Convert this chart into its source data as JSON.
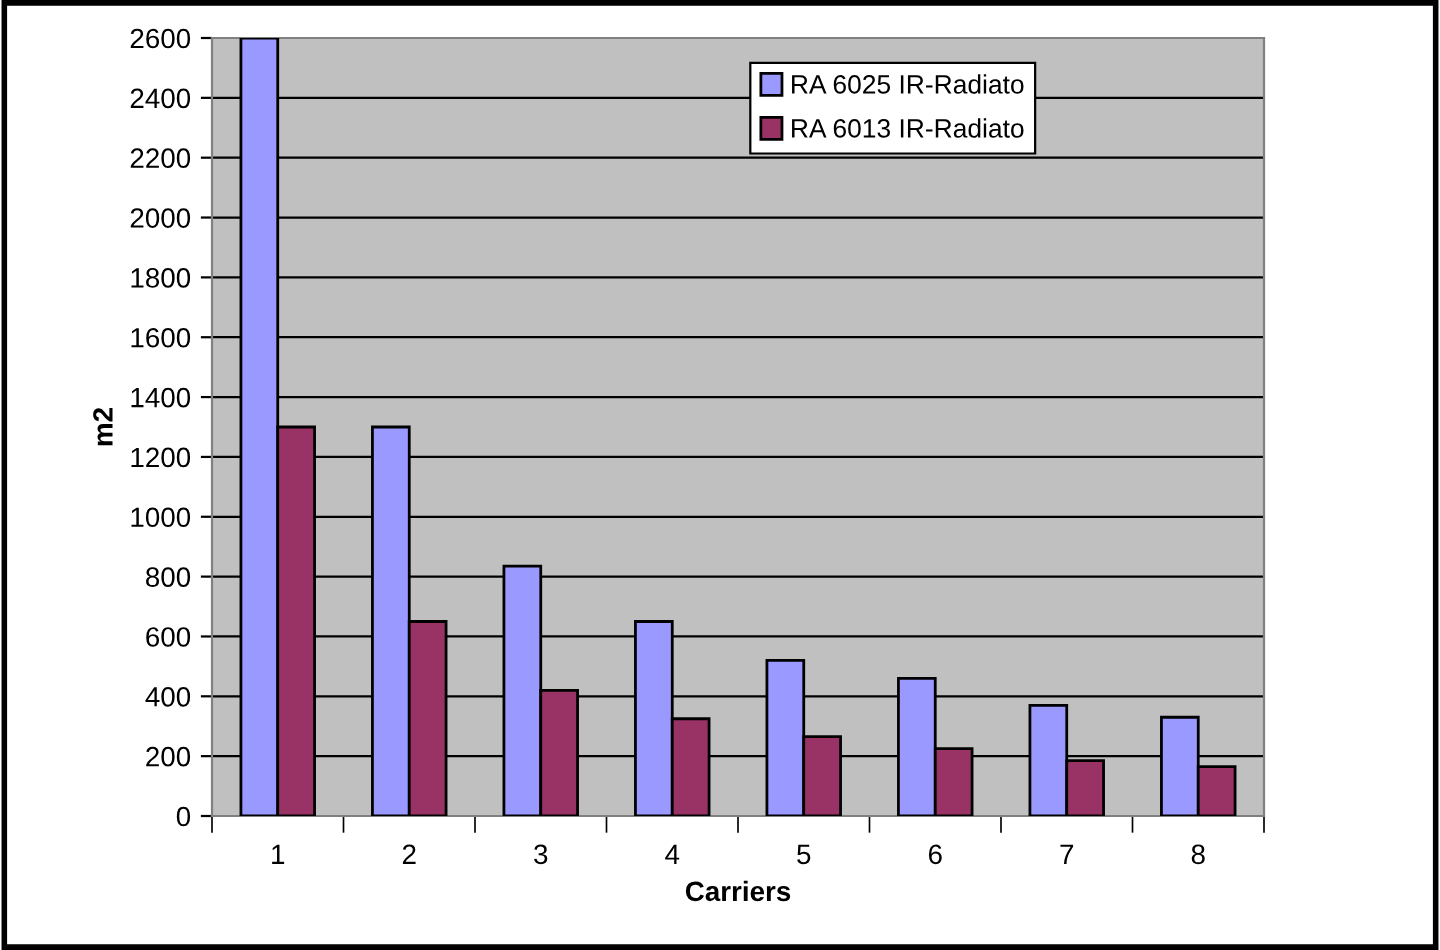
{
  "chart_data": {
    "type": "bar",
    "xlabel": "Carriers",
    "ylabel": "m2",
    "categories": [
      "1",
      "2",
      "3",
      "4",
      "5",
      "6",
      "7",
      "8"
    ],
    "series": [
      {
        "name": "RA 6025 IR-Radiato",
        "color": "#9999ff",
        "values": [
          2600,
          1300,
          835,
          650,
          520,
          460,
          370,
          330
        ]
      },
      {
        "name": "RA 6013 IR-Radiato",
        "color": "#993366",
        "values": [
          1300,
          650,
          420,
          325,
          265,
          225,
          185,
          165
        ]
      }
    ],
    "ylim": [
      0,
      2600
    ],
    "yticks": [
      0,
      200,
      400,
      600,
      800,
      1000,
      1200,
      1400,
      1600,
      1800,
      2000,
      2200,
      2400,
      2600
    ],
    "grid": "y",
    "legend": "top right"
  }
}
